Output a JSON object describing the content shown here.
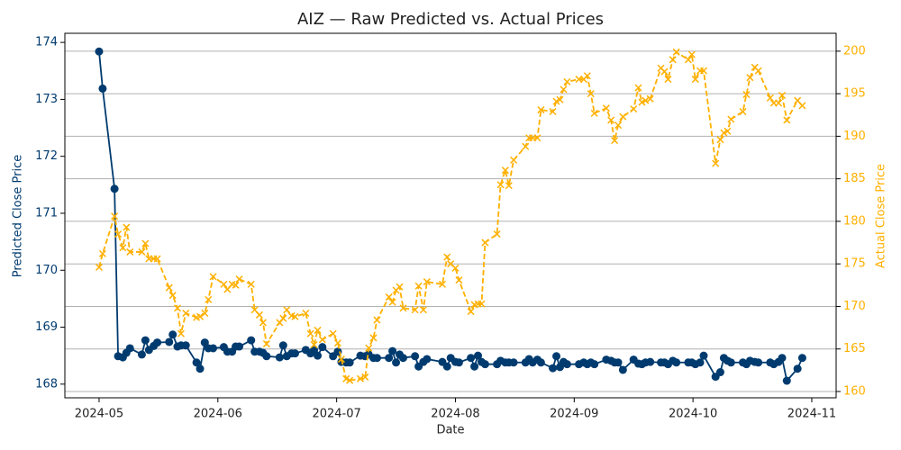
{
  "chart_data": {
    "type": "line",
    "title": "AIZ — Raw Predicted vs. Actual Prices",
    "xlabel": "Date",
    "ylabel": "Predicted Close Price",
    "y2label": "Actual Close Price",
    "x": [
      5.0,
      5.03,
      5.13,
      5.16,
      5.2,
      5.23,
      5.26,
      5.36,
      5.39,
      5.42,
      5.46,
      5.49,
      5.59,
      5.62,
      5.66,
      5.69,
      5.73,
      5.82,
      5.85,
      5.89,
      5.92,
      5.96,
      6.05,
      6.08,
      6.12,
      6.15,
      6.18,
      6.28,
      6.31,
      6.35,
      6.38,
      6.41,
      6.52,
      6.55,
      6.58,
      6.62,
      6.65,
      6.74,
      6.78,
      6.81,
      6.84,
      6.88,
      6.97,
      7.01,
      7.04,
      7.08,
      7.11,
      7.2,
      7.24,
      7.27,
      7.31,
      7.34,
      7.44,
      7.47,
      7.5,
      7.53,
      7.56,
      7.66,
      7.69,
      7.73,
      7.76,
      7.89,
      7.93,
      7.96,
      8.0,
      8.03,
      8.13,
      8.16,
      8.19,
      8.22,
      8.25,
      8.35,
      8.38,
      8.42,
      8.45,
      8.49,
      8.59,
      8.62,
      8.65,
      8.69,
      8.72,
      8.82,
      8.85,
      8.88,
      8.91,
      8.94,
      9.04,
      9.08,
      9.11,
      9.14,
      9.17,
      9.27,
      9.31,
      9.34,
      9.37,
      9.41,
      9.5,
      9.54,
      9.57,
      9.6,
      9.64,
      9.73,
      9.76,
      9.79,
      9.83,
      9.86,
      9.96,
      9.99,
      10.02,
      10.06,
      10.09,
      10.19,
      10.23,
      10.26,
      10.29,
      10.32,
      10.42,
      10.45,
      10.48,
      10.52,
      10.55,
      10.65,
      10.68,
      10.72,
      10.75,
      10.79,
      10.88,
      10.92
    ],
    "series": [
      {
        "name": "Predicted Close Price",
        "color": "#003b6f",
        "axis": "y",
        "marker": "circle",
        "dashed": false,
        "values": [
          173.84,
          173.19,
          171.43,
          168.49,
          168.47,
          168.55,
          168.63,
          168.52,
          168.77,
          168.6,
          168.67,
          168.73,
          168.74,
          168.87,
          168.66,
          168.68,
          168.68,
          168.38,
          168.27,
          168.73,
          168.63,
          168.63,
          168.65,
          168.57,
          168.57,
          168.66,
          168.66,
          168.77,
          168.57,
          168.57,
          168.55,
          168.49,
          168.47,
          168.68,
          168.49,
          168.54,
          168.54,
          168.6,
          168.54,
          168.6,
          168.5,
          168.65,
          168.49,
          168.57,
          168.39,
          168.38,
          168.38,
          168.5,
          168.49,
          168.52,
          168.46,
          168.46,
          168.46,
          168.58,
          168.38,
          168.52,
          168.46,
          168.49,
          168.31,
          168.39,
          168.44,
          168.39,
          168.31,
          168.46,
          168.39,
          168.38,
          168.46,
          168.31,
          168.5,
          168.39,
          168.35,
          168.35,
          168.41,
          168.38,
          168.38,
          168.38,
          168.38,
          168.44,
          168.38,
          168.43,
          168.38,
          168.28,
          168.49,
          168.3,
          168.39,
          168.35,
          168.35,
          168.38,
          168.35,
          168.38,
          168.35,
          168.43,
          168.41,
          168.38,
          168.38,
          168.25,
          168.43,
          168.36,
          168.35,
          168.38,
          168.39,
          168.38,
          168.38,
          168.35,
          168.41,
          168.38,
          168.38,
          168.38,
          168.35,
          168.38,
          168.5,
          168.13,
          168.21,
          168.46,
          168.41,
          168.38,
          168.38,
          168.35,
          168.41,
          168.39,
          168.38,
          168.38,
          168.35,
          168.39,
          168.46,
          168.06,
          168.27,
          168.46
        ]
      },
      {
        "name": "Actual Close Price",
        "color": "#ffb000",
        "axis": "y2",
        "marker": "x",
        "dashed": true,
        "values": [
          174.6,
          176.2,
          180.6,
          178.5,
          176.9,
          179.3,
          176.4,
          176.4,
          177.4,
          175.6,
          175.6,
          175.6,
          172.2,
          171.3,
          169.8,
          166.8,
          169.2,
          168.7,
          168.8,
          169.2,
          170.8,
          173.5,
          172.6,
          172.0,
          172.6,
          172.5,
          173.2,
          172.6,
          169.6,
          169.0,
          168.1,
          165.6,
          168.1,
          168.6,
          169.6,
          168.9,
          168.8,
          169.2,
          166.8,
          165.5,
          167.2,
          166.1,
          166.8,
          165.7,
          163.8,
          161.5,
          161.3,
          161.5,
          161.7,
          165.1,
          166.3,
          168.4,
          171.1,
          170.5,
          171.9,
          172.3,
          169.8,
          169.6,
          172.4,
          169.6,
          172.9,
          172.6,
          175.8,
          175.0,
          174.5,
          173.1,
          169.4,
          170.2,
          170.3,
          170.3,
          177.5,
          178.5,
          184.3,
          186.0,
          184.2,
          187.2,
          188.8,
          189.8,
          189.8,
          189.8,
          193.1,
          192.9,
          194.1,
          194.3,
          195.5,
          196.4,
          196.7,
          196.7,
          197.1,
          195.0,
          192.7,
          193.3,
          191.9,
          189.5,
          191.3,
          192.3,
          193.2,
          195.7,
          194.0,
          194.2,
          194.4,
          198.0,
          197.6,
          196.7,
          199.0,
          199.9,
          199.0,
          199.6,
          196.7,
          197.7,
          197.7,
          186.8,
          189.6,
          190.4,
          190.6,
          192.0,
          192.9,
          194.9,
          196.9,
          198.1,
          197.7,
          194.5,
          193.9,
          193.9,
          194.8,
          191.9,
          194.2,
          193.6
        ]
      }
    ],
    "xlim": [
      4.712,
      11.205
    ],
    "xticks": [
      {
        "value": 5,
        "label": "2024-05"
      },
      {
        "value": 6,
        "label": "2024-06"
      },
      {
        "value": 7,
        "label": "2024-07"
      },
      {
        "value": 8,
        "label": "2024-08"
      },
      {
        "value": 9,
        "label": "2024-09"
      },
      {
        "value": 10,
        "label": "2024-10"
      },
      {
        "value": 11,
        "label": "2024-11"
      }
    ],
    "ylim": [
      167.76,
      174.16
    ],
    "yticks": [
      168,
      169,
      170,
      171,
      172,
      173,
      174
    ],
    "y2lim": [
      159.26,
      202.1
    ],
    "y2ticks": [
      160,
      165,
      170,
      175,
      180,
      185,
      190,
      195,
      200
    ],
    "grid": "y2"
  }
}
